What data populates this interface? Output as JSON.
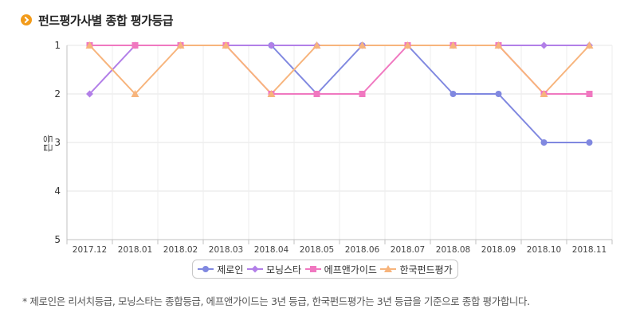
{
  "header": {
    "title": "펀드평가사별 종합 평가등급",
    "icon": "chevron-right-circle-icon",
    "icon_color": "#f29b1a"
  },
  "chart_data": {
    "type": "line",
    "title": "",
    "xlabel": "",
    "ylabel": "등급",
    "categories": [
      "2017.12",
      "2018.01",
      "2018.02",
      "2018.03",
      "2018.04",
      "2018.05",
      "2018.06",
      "2018.07",
      "2018.08",
      "2018.09",
      "2018.10",
      "2018.11"
    ],
    "ylim": [
      1,
      5
    ],
    "y_reversed": true,
    "yticks": [
      1,
      2,
      3,
      4,
      5
    ],
    "grid": true,
    "legend_position": "bottom",
    "series": [
      {
        "name": "제로인",
        "color": "#8088e0",
        "marker": "circle",
        "values": [
          1,
          1,
          1,
          1,
          1,
          2,
          1,
          1,
          2,
          2,
          3,
          3
        ]
      },
      {
        "name": "모닝스타",
        "color": "#b27fe8",
        "marker": "diamond",
        "values": [
          2,
          1,
          1,
          1,
          1,
          1,
          1,
          1,
          1,
          1,
          1,
          1
        ]
      },
      {
        "name": "에프앤가이드",
        "color": "#f078c0",
        "marker": "square",
        "values": [
          1,
          1,
          1,
          1,
          2,
          2,
          2,
          1,
          1,
          1,
          2,
          2
        ]
      },
      {
        "name": "한국펀드평가",
        "color": "#f7b47c",
        "marker": "triangle",
        "values": [
          1,
          2,
          1,
          1,
          2,
          1,
          1,
          1,
          1,
          1,
          2,
          1
        ]
      }
    ]
  },
  "footnote": "* 제로인은 리서치등급, 모닝스타는 종합등급, 에프앤가이드는 3년 등급, 한국펀드평가는 3년 등급을 기준으로 종합 평가합니다."
}
